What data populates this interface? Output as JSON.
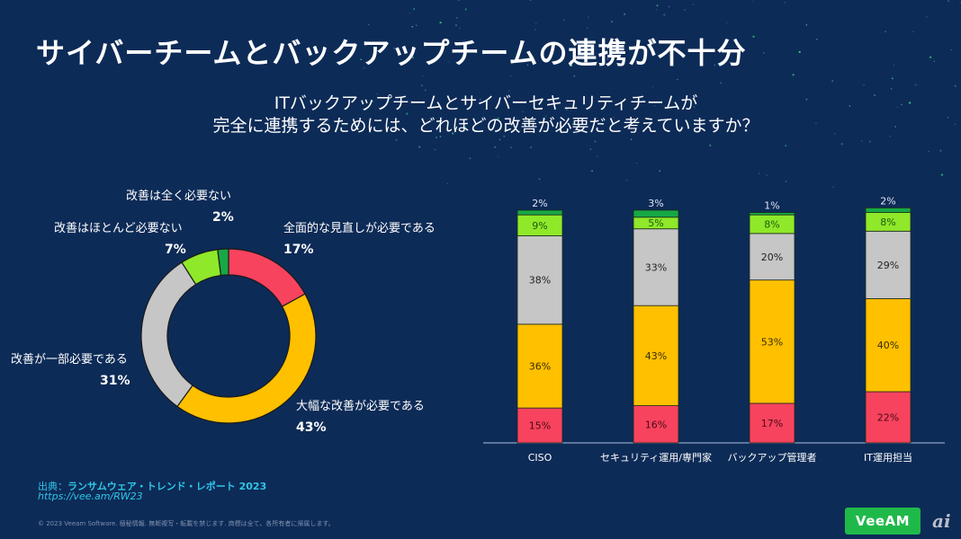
{
  "title": "サイバーチームとバックアップチームの連携が不十分",
  "question": {
    "line1": "ITバックアップチームとサイバーセキュリティチームが",
    "line2": "完全に連携するためには、どれほどの改善が必要だと考えていますか？"
  },
  "colors": {
    "background": "#0d2b57",
    "full_review": "#f7435e",
    "major": "#ffc000",
    "some": "#c6c6c6",
    "little": "#8fe829",
    "none": "#17a845",
    "axis": "#8ea4c8"
  },
  "chart_data": [
    {
      "type": "pie",
      "variant": "donut",
      "title": "",
      "slices": [
        {
          "key": "full_review",
          "label": "全面的な見直しが必要である",
          "value": 17,
          "value_label": "17%"
        },
        {
          "key": "major",
          "label": "大幅な改善が必要である",
          "value": 43,
          "value_label": "43%"
        },
        {
          "key": "some",
          "label": "改善が一部必要である",
          "value": 31,
          "value_label": "31%"
        },
        {
          "key": "little",
          "label": "改善はほとんど必要ない",
          "value": 7,
          "value_label": "7%"
        },
        {
          "key": "none",
          "label": "改善は全く必要ない",
          "value": 2,
          "value_label": "2%"
        }
      ],
      "start_angle": "12 o'clock, clockwise"
    },
    {
      "type": "bar",
      "stacked": true,
      "orientation": "vertical",
      "categories": [
        "CISO",
        "セキュリティ運用/専門家",
        "バックアップ管理者",
        "IT運用担当"
      ],
      "series": [
        {
          "key": "full_review",
          "name": "全面的な見直しが必要である",
          "values": [
            15,
            16,
            17,
            22
          ]
        },
        {
          "key": "major",
          "name": "大幅な改善が必要である",
          "values": [
            36,
            43,
            53,
            40
          ]
        },
        {
          "key": "some",
          "name": "改善が一部必要である",
          "values": [
            38,
            33,
            20,
            29
          ]
        },
        {
          "key": "little",
          "name": "改善はほとんど必要ない",
          "values": [
            9,
            5,
            8,
            8
          ]
        },
        {
          "key": "none",
          "name": "改善は全く必要ない",
          "values": [
            2,
            3,
            1,
            2
          ]
        }
      ],
      "ylim": [
        0,
        100
      ],
      "grid": false,
      "legend": "none",
      "data_label_format": "{v}%"
    }
  ],
  "footer": {
    "source_prefix": "出典：",
    "source_title": "ランサムウェア・トレンド・レポート 2023",
    "source_url": "https://vee.am/RW23",
    "copyright": "© 2023 Veeam Software. 極秘情報. 無断複写・転載を禁じます. 商標は全て、各所有者に帰属します。",
    "logo_text": "VeeAM",
    "watermark": "ai"
  }
}
